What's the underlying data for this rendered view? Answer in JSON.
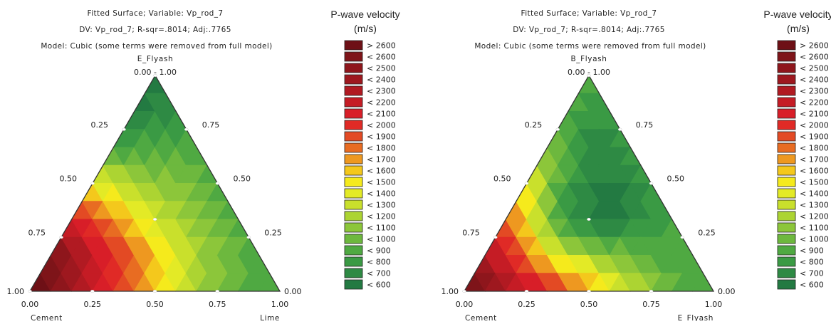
{
  "chart_data": [
    {
      "type": "heatmap",
      "subtype": "ternary contour",
      "title_lines": [
        "Fitted Surface; Variable: Vp_rod_7",
        "DV: Vp_rod_7; R-sqr=.8014; Adj:.7765",
        "Model: Cubic    (some terms were removed from full model)"
      ],
      "axes": {
        "bottom_left": "Cement",
        "bottom_right": "Lime",
        "top": "E_Flyash"
      },
      "apex_label": "0.00 - 1.00",
      "left_edge_ticks": [
        "1.00",
        "0.75",
        "0.50",
        "0.25"
      ],
      "right_edge_ticks": [
        "0.75",
        "0.50",
        "0.25",
        "0.00"
      ],
      "bottom_ticks": [
        "0.00",
        "0.25",
        "0.50",
        "0.75",
        "1.00"
      ],
      "legend_title": [
        "P-wave velocity",
        "(m/s)"
      ],
      "legend": [
        {
          "label": "> 2600",
          "color": "#6e1016"
        },
        {
          "label": "< 2600",
          "color": "#7e1419"
        },
        {
          "label": "< 2500",
          "color": "#8e161c"
        },
        {
          "label": "< 2400",
          "color": "#9e181f"
        },
        {
          "label": "< 2300",
          "color": "#b11a22"
        },
        {
          "label": "< 2200",
          "color": "#c51c25"
        },
        {
          "label": "< 2100",
          "color": "#d81e28"
        },
        {
          "label": "< 2000",
          "color": "#e02a26"
        },
        {
          "label": "< 1900",
          "color": "#e34a24"
        },
        {
          "label": "< 1800",
          "color": "#e86c22"
        },
        {
          "label": "< 1700",
          "color": "#ee9820"
        },
        {
          "label": "< 1600",
          "color": "#f4c81c"
        },
        {
          "label": "< 1500",
          "color": "#f5ea1c"
        },
        {
          "label": "< 1400",
          "color": "#e3ea26"
        },
        {
          "label": "< 1300",
          "color": "#c9e02c"
        },
        {
          "label": "< 1200",
          "color": "#acd432"
        },
        {
          "label": "< 1100",
          "color": "#8cc63a"
        },
        {
          "label": "< 1000",
          "color": "#6db83e"
        },
        {
          "label": "< 900",
          "color": "#4fa942"
        },
        {
          "label": "< 800",
          "color": "#3a9a44"
        },
        {
          "label": "< 700",
          "color": "#2e8a44"
        },
        {
          "label": "< 600",
          "color": "#237a42"
        }
      ],
      "design_points": [
        [
          1,
          0,
          0
        ],
        [
          0.5,
          0,
          0.5
        ],
        [
          0.5,
          0.5,
          0
        ],
        [
          0,
          0.5,
          0.5
        ],
        [
          0,
          1,
          0
        ],
        [
          0.3333,
          0.3333,
          0.3333
        ],
        [
          0.75,
          0.25,
          0
        ],
        [
          0.25,
          0.75,
          0
        ],
        [
          0.75,
          0,
          0.25
        ],
        [
          0.25,
          0,
          0.75
        ],
        [
          0,
          0.25,
          0.75
        ],
        [
          0,
          0.75,
          0.25
        ]
      ],
      "levels_grid": [
        [
          21
        ],
        [
          21,
          20
        ],
        [
          21,
          20,
          20
        ],
        [
          20,
          19,
          19,
          19
        ],
        [
          19,
          18,
          18,
          18,
          18
        ],
        [
          16,
          16,
          17,
          17,
          17,
          18
        ],
        [
          13,
          14,
          15,
          16,
          16,
          17,
          18
        ],
        [
          9,
          11,
          12,
          14,
          15,
          16,
          17,
          18
        ],
        [
          6,
          8,
          10,
          12,
          14,
          15,
          16,
          17,
          18
        ],
        [
          3,
          5,
          7,
          9,
          11,
          13,
          15,
          16,
          17,
          18
        ],
        [
          1,
          3,
          5,
          7,
          9,
          11,
          13,
          15,
          16,
          17,
          18
        ],
        [
          0,
          2,
          4,
          6,
          8,
          10,
          12,
          14,
          16,
          17,
          18,
          18
        ],
        [
          0,
          1,
          3,
          5,
          7,
          9,
          11,
          13,
          15,
          16,
          17,
          18,
          18
        ]
      ]
    },
    {
      "type": "heatmap",
      "subtype": "ternary contour",
      "title_lines": [
        "Fitted Surface; Variable: Vp_rod_7",
        "DV: Vp_rod_7; R-sqr=.8014; Adj:.7765",
        "Model: Cubic    (some terms were removed from full model)"
      ],
      "axes": {
        "bottom_left": "Cement",
        "bottom_right": "E_Flyash",
        "top": "B_Flyash"
      },
      "apex_label": "0.00 - 1.00",
      "left_edge_ticks": [
        "1.00",
        "0.75",
        "0.50",
        "0.25"
      ],
      "right_edge_ticks": [
        "0.75",
        "0.50",
        "0.25",
        "0.00"
      ],
      "bottom_ticks": [
        "0.00",
        "0.25",
        "0.50",
        "0.75",
        "1.00"
      ],
      "legend_title": [
        "P-wave velocity",
        "(m/s)"
      ],
      "legend": [
        {
          "label": "> 2600",
          "color": "#6e1016"
        },
        {
          "label": "< 2600",
          "color": "#7e1419"
        },
        {
          "label": "< 2500",
          "color": "#8e161c"
        },
        {
          "label": "< 2400",
          "color": "#9e181f"
        },
        {
          "label": "< 2300",
          "color": "#b11a22"
        },
        {
          "label": "< 2200",
          "color": "#c51c25"
        },
        {
          "label": "< 2100",
          "color": "#d81e28"
        },
        {
          "label": "< 2000",
          "color": "#e02a26"
        },
        {
          "label": "< 1900",
          "color": "#e34a24"
        },
        {
          "label": "< 1800",
          "color": "#e86c22"
        },
        {
          "label": "< 1700",
          "color": "#ee9820"
        },
        {
          "label": "< 1600",
          "color": "#f4c81c"
        },
        {
          "label": "< 1500",
          "color": "#f5ea1c"
        },
        {
          "label": "< 1400",
          "color": "#e3ea26"
        },
        {
          "label": "< 1300",
          "color": "#c9e02c"
        },
        {
          "label": "< 1200",
          "color": "#acd432"
        },
        {
          "label": "< 1100",
          "color": "#8cc63a"
        },
        {
          "label": "< 1000",
          "color": "#6db83e"
        },
        {
          "label": "< 900",
          "color": "#4fa942"
        },
        {
          "label": "< 800",
          "color": "#3a9a44"
        },
        {
          "label": "< 700",
          "color": "#2e8a44"
        },
        {
          "label": "< 600",
          "color": "#237a42"
        }
      ],
      "design_points": [
        [
          1,
          0,
          0
        ],
        [
          0.5,
          0,
          0.5
        ],
        [
          0.5,
          0.5,
          0
        ],
        [
          0,
          0.5,
          0.5
        ],
        [
          0,
          1,
          0
        ],
        [
          0.3333,
          0.3333,
          0.3333
        ],
        [
          0.75,
          0.25,
          0
        ],
        [
          0.25,
          0.75,
          0
        ],
        [
          0.75,
          0,
          0.25
        ],
        [
          0.25,
          0,
          0.75
        ],
        [
          0,
          0.25,
          0.75
        ],
        [
          0,
          0.75,
          0.25
        ]
      ],
      "levels_grid": [
        [
          18
        ],
        [
          18,
          19
        ],
        [
          18,
          19,
          19
        ],
        [
          17,
          19,
          20,
          19
        ],
        [
          16,
          18,
          20,
          20,
          19
        ],
        [
          14,
          17,
          19,
          20,
          20,
          19
        ],
        [
          12,
          16,
          19,
          20,
          21,
          20,
          19
        ],
        [
          10,
          14,
          18,
          20,
          21,
          21,
          20,
          19
        ],
        [
          8,
          12,
          16,
          19,
          20,
          21,
          20,
          19,
          19
        ],
        [
          6,
          9,
          13,
          16,
          18,
          19,
          19,
          19,
          18,
          18
        ],
        [
          4,
          6,
          9,
          12,
          14,
          15,
          16,
          17,
          18,
          18,
          18
        ],
        [
          2,
          4,
          6,
          8,
          10,
          11,
          13,
          15,
          16,
          17,
          18,
          18
        ],
        [
          0,
          1,
          3,
          5,
          6,
          8,
          10,
          12,
          14,
          16,
          17,
          18,
          18
        ]
      ]
    }
  ]
}
